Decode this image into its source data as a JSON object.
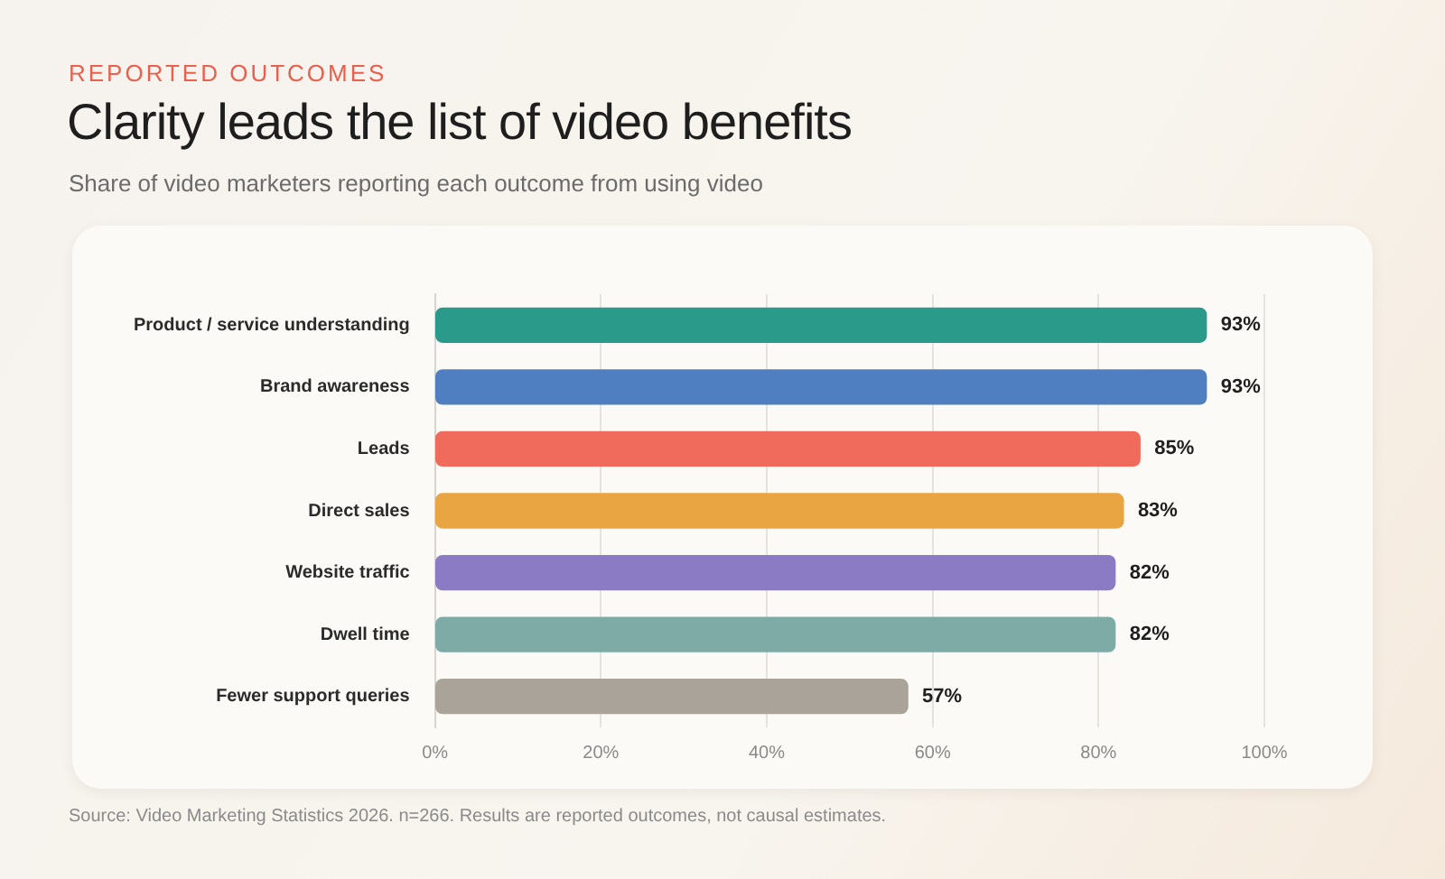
{
  "chart_data": {
    "type": "bar",
    "orientation": "horizontal",
    "title": "Clarity leads the list of video benefits",
    "subtitle": "Share of video marketers reporting each outcome from using video",
    "annotations": [
      "REPORTED OUTCOMES",
      "Source: Video Marketing Statistics 2026. n=266. Results are reported outcomes, not causal estimates."
    ],
    "categories": [
      "Product / service understanding",
      "Brand awareness",
      "Leads",
      "Direct sales",
      "Website traffic",
      "Dwell time",
      "Fewer support queries"
    ],
    "values": [
      93,
      93,
      85,
      83,
      82,
      82,
      57
    ],
    "colors": [
      "#2a9a8a",
      "#4f7fc0",
      "#f06b5b",
      "#e8a541",
      "#8a7bc4",
      "#7eaba6",
      "#a9a399"
    ],
    "value_labels": [
      "93%",
      "93%",
      "85%",
      "83%",
      "82%",
      "82%",
      "57%"
    ],
    "xlim": [
      0,
      100
    ],
    "xticks": [
      {
        "value": 0,
        "label": "0%"
      },
      {
        "value": 20,
        "label": "20%"
      },
      {
        "value": 40,
        "label": "40%"
      },
      {
        "value": 60,
        "label": "60%"
      },
      {
        "value": 80,
        "label": "80%"
      },
      {
        "value": 100,
        "label": "100%"
      }
    ],
    "grid": "x",
    "legend": false
  }
}
